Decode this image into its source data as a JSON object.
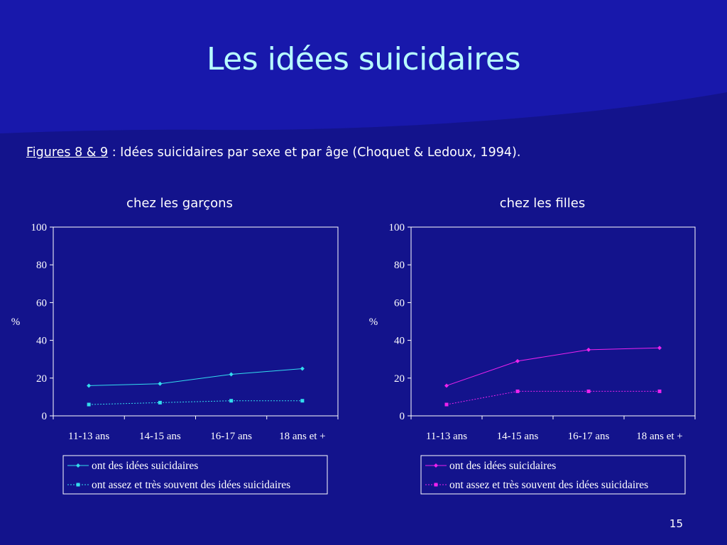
{
  "slide": {
    "title": "Les idées suicidaires",
    "caption_ref": "Figures 8 & 9",
    "caption_text": " : Idées suicidaires par sexe et par âge (Choquet & Ledoux, 1994).",
    "page_number": "15"
  },
  "colors": {
    "background": "#13138c",
    "title": "#b8ffff",
    "boys_series": "#33ddee",
    "girls_series": "#ee22ee",
    "axis": "#ffffff"
  },
  "chart_data": [
    {
      "type": "line",
      "title": "chez les garçons",
      "ylabel": "%",
      "xlabel": "",
      "categories": [
        "11-13 ans",
        "14-15 ans",
        "16-17 ans",
        "18 ans et +"
      ],
      "ylim": [
        0,
        100
      ],
      "yticks": [
        "0",
        "20",
        "40",
        "60",
        "80",
        "100"
      ],
      "grid": false,
      "legend_position": "bottom",
      "series": [
        {
          "name": "ont des idées suicidaires",
          "values": [
            16,
            17,
            22,
            25
          ],
          "marker": "diamond",
          "line": "solid",
          "color": "#33ddee"
        },
        {
          "name": "ont assez et très souvent des idées suicidaires",
          "values": [
            6,
            7,
            8,
            8
          ],
          "marker": "square",
          "line": "dotted",
          "color": "#33ddee"
        }
      ]
    },
    {
      "type": "line",
      "title": "chez les filles",
      "ylabel": "%",
      "xlabel": "",
      "categories": [
        "11-13 ans",
        "14-15 ans",
        "16-17 ans",
        "18 ans et +"
      ],
      "ylim": [
        0,
        100
      ],
      "yticks": [
        "0",
        "20",
        "40",
        "60",
        "80",
        "100"
      ],
      "grid": false,
      "legend_position": "bottom",
      "series": [
        {
          "name": "ont des idées suicidaires",
          "values": [
            16,
            29,
            35,
            36
          ],
          "marker": "diamond",
          "line": "solid",
          "color": "#ee22ee"
        },
        {
          "name": "ont assez et très souvent des idées suicidaires",
          "values": [
            6,
            13,
            13,
            13
          ],
          "marker": "square",
          "line": "dotted",
          "color": "#ee22ee"
        }
      ]
    }
  ]
}
